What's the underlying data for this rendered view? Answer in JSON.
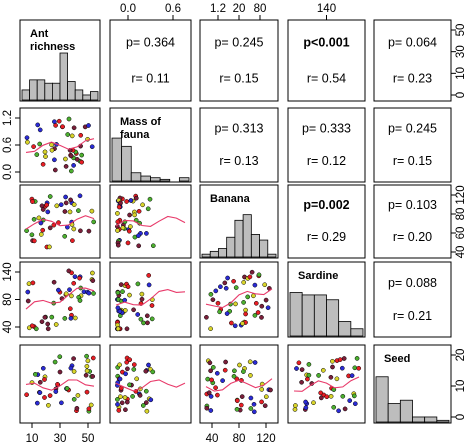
{
  "chart_data": {
    "type": "scatter-matrix",
    "variables": [
      "Ant richness",
      "Mass of fauna",
      "Banana",
      "Sardine",
      "Seed"
    ],
    "diagonal_labels": [
      [
        "Ant",
        "richness"
      ],
      [
        "Mass of",
        "fauna"
      ],
      [
        "Banana"
      ],
      [
        "Sardine"
      ],
      [
        "Seed"
      ]
    ],
    "point_colors": [
      "#e81e25",
      "#4caf2f",
      "#d8d42a",
      "#2b2bd6",
      "#7a1f3a"
    ],
    "smooth_color": "#e83a6a",
    "axes": {
      "top": [
        {
          "col": 1,
          "ticks": [
            "0.0",
            "0.6"
          ],
          "values": [
            0.0,
            0.6
          ]
        },
        {
          "col": 2,
          "ticks": [
            "1.2",
            "20",
            "80"
          ],
          "values": [
            1.2,
            20,
            80
          ]
        },
        {
          "col": 3,
          "ticks": [
            "140"
          ],
          "values": [
            140
          ]
        }
      ],
      "bottom": [
        {
          "col": 0,
          "ticks": [
            "10",
            "30",
            "50"
          ],
          "values": [
            10,
            30,
            50
          ]
        },
        {
          "col": 2,
          "ticks": [
            "40",
            "80",
            "120"
          ],
          "values": [
            40,
            80,
            120
          ]
        }
      ],
      "left": [
        {
          "row": 1,
          "ticks": [
            "0.0",
            "0.6",
            "1.2"
          ],
          "values": [
            0.0,
            0.6,
            1.2
          ]
        },
        {
          "row": 3,
          "ticks": [
            "40",
            "80",
            "140"
          ],
          "values": [
            40,
            80,
            140
          ]
        }
      ],
      "right": [
        {
          "row": 0,
          "ticks": [
            "0",
            "10",
            "30",
            "50"
          ],
          "values": [
            0,
            10,
            30,
            50
          ]
        },
        {
          "row": 2,
          "ticks": [
            "40",
            "60",
            "80",
            "120"
          ],
          "values": [
            40,
            60,
            80,
            120
          ]
        },
        {
          "row": 4,
          "ticks": [
            "0",
            "10",
            "20"
          ],
          "values": [
            0,
            10,
            20
          ]
        }
      ]
    },
    "histograms": [
      {
        "var": "Ant richness",
        "counts": [
          6,
          12,
          12,
          10,
          10,
          28,
          11,
          6,
          3,
          5
        ]
      },
      {
        "var": "Mass of fauna",
        "counts": [
          26,
          21,
          5,
          3,
          2,
          1,
          0,
          2
        ]
      },
      {
        "var": "Banana",
        "counts": [
          1,
          2,
          3,
          7,
          13,
          15,
          8,
          6,
          1
        ]
      },
      {
        "var": "Sardine",
        "counts": [
          18,
          17,
          17,
          15,
          6,
          3
        ]
      },
      {
        "var": "Seed",
        "counts": [
          27,
          11,
          13,
          3,
          3,
          1
        ]
      }
    ],
    "correlations": [
      {
        "pair": [
          "Ant richness",
          "Mass of fauna"
        ],
        "p": "p= 0.364",
        "r": "r= 0.11",
        "significant": false
      },
      {
        "pair": [
          "Ant richness",
          "Banana"
        ],
        "p": "p= 0.245",
        "r": "r= 0.15",
        "significant": false
      },
      {
        "pair": [
          "Ant richness",
          "Sardine"
        ],
        "p": "p<0.001",
        "r": "r= 0.54",
        "significant": true
      },
      {
        "pair": [
          "Ant richness",
          "Seed"
        ],
        "p": "p= 0.064",
        "r": "r= 0.23",
        "significant": false
      },
      {
        "pair": [
          "Mass of fauna",
          "Banana"
        ],
        "p": "p= 0.313",
        "r": "r= 0.13",
        "significant": false
      },
      {
        "pair": [
          "Mass of fauna",
          "Sardine"
        ],
        "p": "p= 0.333",
        "r": "r= 0.12",
        "significant": false
      },
      {
        "pair": [
          "Mass of fauna",
          "Seed"
        ],
        "p": "p= 0.245",
        "r": "r= 0.15",
        "significant": false
      },
      {
        "pair": [
          "Banana",
          "Sardine"
        ],
        "p": "p=0.002",
        "r": "r= 0.29",
        "significant": true
      },
      {
        "pair": [
          "Banana",
          "Seed"
        ],
        "p": "p= 0.103",
        "r": "r= 0.20",
        "significant": false
      },
      {
        "pair": [
          "Sardine",
          "Seed"
        ],
        "p": "p= 0.088",
        "r": "r= 0.21",
        "significant": false
      }
    ]
  }
}
